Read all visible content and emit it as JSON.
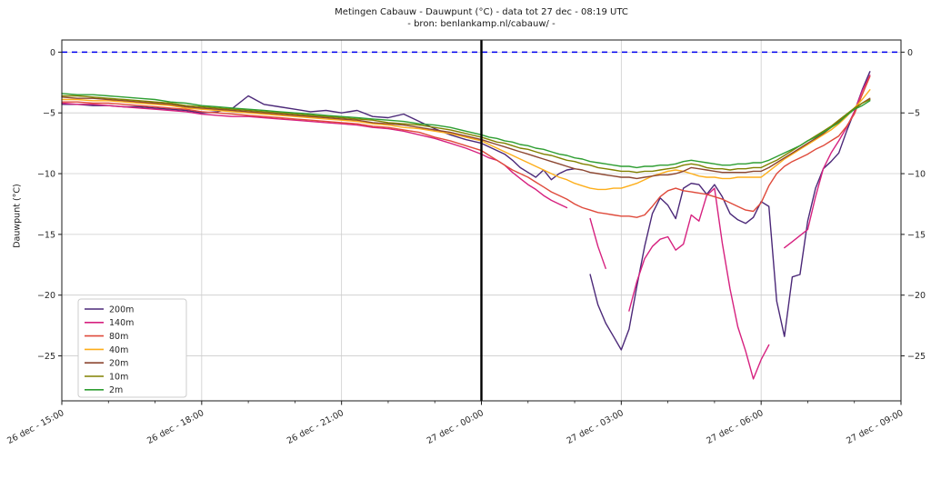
{
  "title": {
    "line1": "Metingen Cabauw - Dauwpunt (°C) - data tot 27 dec - 08:19 UTC",
    "line2": "- bron: benlankamp.nl/cabauw/ -"
  },
  "axes": {
    "ylabel": "Dauwpunt (°C)",
    "y_ticks": [
      0,
      -5,
      -10,
      -15,
      -20,
      -25
    ],
    "y_range": [
      -28.7,
      1.0
    ],
    "x_range_minutes": [
      0,
      1080
    ],
    "x_tick_minutes": [
      0,
      180,
      360,
      540,
      720,
      900,
      1080
    ],
    "x_tick_labels": [
      "26 dec - 15:00",
      "26 dec - 18:00",
      "26 dec - 21:00",
      "27 dec - 00:00",
      "27 dec - 03:00",
      "27 dec - 06:00",
      "27 dec - 09:00"
    ],
    "x_minor_step_minutes": 60,
    "grid": true,
    "grid_color": "#cccccc",
    "spine_color": "#1a1a1a"
  },
  "annotations": {
    "zero_line": {
      "y": 0,
      "color": "#0000ee",
      "style": "dashed"
    },
    "midnight_line": {
      "x_minutes": 540,
      "color": "#000000"
    }
  },
  "chart_data": {
    "type": "line",
    "title": "Metingen Cabauw - Dauwpunt (°C) - data tot 27 dec - 08:19 UTC",
    "xlabel": "",
    "ylabel": "Dauwpunt (°C)",
    "legend_position": "lower left",
    "x_minutes_after_26dec_1500": [
      0,
      20,
      40,
      60,
      80,
      100,
      120,
      140,
      160,
      180,
      200,
      220,
      240,
      260,
      280,
      300,
      320,
      340,
      360,
      380,
      400,
      420,
      440,
      460,
      480,
      500,
      520,
      540,
      550,
      560,
      570,
      580,
      590,
      600,
      610,
      620,
      630,
      640,
      650,
      660,
      670,
      680,
      690,
      700,
      710,
      720,
      730,
      740,
      750,
      760,
      770,
      780,
      790,
      800,
      810,
      820,
      830,
      840,
      850,
      860,
      870,
      880,
      890,
      900,
      910,
      920,
      930,
      940,
      950,
      960,
      970,
      980,
      990,
      1000,
      1010,
      1020,
      1030,
      1040
    ],
    "series": [
      {
        "name": "200m",
        "color": "#4b2878",
        "values": [
          -4.3,
          -4.3,
          -4.4,
          -4.4,
          -4.5,
          -4.5,
          -4.6,
          -4.7,
          -4.8,
          -5.0,
          -4.9,
          -4.6,
          -3.6,
          -4.3,
          -4.5,
          -4.7,
          -4.9,
          -4.8,
          -5.0,
          -4.8,
          -5.3,
          -5.4,
          -5.1,
          -5.7,
          -6.3,
          -6.8,
          -7.2,
          -7.5,
          -7.8,
          -8.1,
          -8.4,
          -8.9,
          -9.5,
          -9.9,
          -10.3,
          -9.7,
          -10.5,
          -10.0,
          -9.7,
          -9.6,
          null,
          -18.3,
          -20.8,
          -22.3,
          -23.4,
          -24.5,
          -22.8,
          -19.3,
          -16.0,
          -13.3,
          -12.0,
          -12.6,
          -13.7,
          -11.2,
          -10.8,
          -10.9,
          -11.7,
          -10.9,
          -11.9,
          -13.3,
          -13.8,
          -14.1,
          -13.6,
          -12.3,
          -12.7,
          -20.5,
          -23.4,
          -18.5,
          -18.3,
          -13.9,
          -11.2,
          -9.6,
          -9.0,
          -8.3,
          -6.5,
          -4.9,
          -3.1,
          -1.6
        ]
      },
      {
        "name": "140m",
        "color": "#d6217f",
        "values": [
          -4.2,
          -4.3,
          -4.3,
          -4.4,
          -4.5,
          -4.6,
          -4.7,
          -4.8,
          -4.9,
          -5.1,
          -5.2,
          -5.3,
          -5.3,
          -5.4,
          -5.5,
          -5.6,
          -5.7,
          -5.8,
          -5.9,
          -6.0,
          -6.2,
          -6.3,
          -6.5,
          -6.8,
          -7.1,
          -7.5,
          -7.9,
          -8.4,
          -8.7,
          -8.9,
          -9.3,
          -9.9,
          -10.4,
          -10.9,
          -11.3,
          -11.8,
          -12.2,
          -12.5,
          -12.8,
          null,
          null,
          -13.7,
          -16.0,
          -17.8,
          null,
          null,
          -21.3,
          -18.9,
          -17.0,
          -16.0,
          -15.4,
          -15.2,
          -16.3,
          -15.8,
          -13.4,
          -13.9,
          -11.8,
          -11.2,
          -15.7,
          -19.5,
          -22.6,
          -24.6,
          -26.9,
          -25.3,
          -24.1,
          null,
          -16.1,
          -15.6,
          -15.1,
          -14.6,
          -11.9,
          -9.6,
          -8.3,
          -7.3,
          -6.2,
          -4.9,
          -3.2,
          -1.9
        ]
      },
      {
        "name": "80m",
        "color": "#df4a3b",
        "values": [
          -4.1,
          -4.1,
          -4.2,
          -4.2,
          -4.3,
          -4.4,
          -4.5,
          -4.6,
          -4.7,
          -4.9,
          -5.0,
          -5.1,
          -5.2,
          -5.3,
          -5.4,
          -5.5,
          -5.6,
          -5.7,
          -5.8,
          -5.9,
          -6.1,
          -6.2,
          -6.4,
          -6.6,
          -7.0,
          -7.3,
          -7.7,
          -8.1,
          -8.5,
          -8.9,
          -9.3,
          -9.7,
          -10.0,
          -10.3,
          -10.7,
          -11.1,
          -11.5,
          -11.8,
          -12.1,
          -12.5,
          -12.8,
          -13.0,
          -13.2,
          -13.3,
          -13.4,
          -13.5,
          -13.5,
          -13.6,
          -13.4,
          -12.7,
          -11.9,
          -11.4,
          -11.2,
          -11.4,
          -11.5,
          -11.6,
          -11.7,
          -11.9,
          -12.1,
          -12.4,
          -12.7,
          -13.0,
          -13.1,
          -12.4,
          -11.0,
          -10.0,
          -9.4,
          -9.0,
          -8.7,
          -8.4,
          -8.0,
          -7.7,
          -7.3,
          -6.9,
          -6.1,
          -5.1,
          -3.5,
          -2.0
        ]
      },
      {
        "name": "40m",
        "color": "#fdae1a",
        "values": [
          -3.9,
          -3.9,
          -4.0,
          -4.0,
          -4.1,
          -4.2,
          -4.3,
          -4.4,
          -4.6,
          -4.7,
          -4.8,
          -4.9,
          -5.0,
          -5.1,
          -5.2,
          -5.3,
          -5.4,
          -5.5,
          -5.6,
          -5.7,
          -5.9,
          -6.0,
          -6.2,
          -6.3,
          -6.5,
          -6.7,
          -7.0,
          -7.3,
          -7.6,
          -7.9,
          -8.2,
          -8.5,
          -8.8,
          -9.1,
          -9.4,
          -9.7,
          -10.0,
          -10.3,
          -10.5,
          -10.8,
          -11.0,
          -11.2,
          -11.3,
          -11.3,
          -11.2,
          -11.2,
          -11.0,
          -10.8,
          -10.5,
          -10.2,
          -10.0,
          -9.8,
          -9.7,
          -9.8,
          -10.0,
          -10.2,
          -10.3,
          -10.3,
          -10.4,
          -10.4,
          -10.3,
          -10.3,
          -10.3,
          -10.3,
          -9.8,
          -9.3,
          -8.8,
          -8.4,
          -8.0,
          -7.6,
          -7.2,
          -6.8,
          -6.4,
          -5.9,
          -5.3,
          -4.6,
          -3.9,
          -3.1
        ]
      },
      {
        "name": "20m",
        "color": "#8c4630",
        "values": [
          -3.7,
          -3.8,
          -3.8,
          -3.9,
          -4.0,
          -4.1,
          -4.2,
          -4.3,
          -4.5,
          -4.6,
          -4.7,
          -4.8,
          -4.9,
          -5.0,
          -5.1,
          -5.2,
          -5.3,
          -5.4,
          -5.5,
          -5.6,
          -5.8,
          -5.9,
          -6.0,
          -6.2,
          -6.4,
          -6.6,
          -6.9,
          -7.2,
          -7.4,
          -7.6,
          -7.8,
          -8.0,
          -8.2,
          -8.4,
          -8.6,
          -8.8,
          -9.0,
          -9.2,
          -9.4,
          -9.6,
          -9.7,
          -9.9,
          -10.0,
          -10.1,
          -10.2,
          -10.3,
          -10.3,
          -10.4,
          -10.3,
          -10.2,
          -10.1,
          -10.1,
          -10.0,
          -9.8,
          -9.5,
          -9.6,
          -9.7,
          -9.8,
          -9.9,
          -9.9,
          -9.9,
          -9.9,
          -9.8,
          -9.8,
          -9.5,
          -9.1,
          -8.7,
          -8.3,
          -7.9,
          -7.5,
          -7.1,
          -6.7,
          -6.2,
          -5.7,
          -5.2,
          -4.7,
          -4.2,
          -3.8
        ]
      },
      {
        "name": "10m",
        "color": "#818100",
        "values": [
          -3.6,
          -3.6,
          -3.7,
          -3.8,
          -3.9,
          -4.0,
          -4.1,
          -4.2,
          -4.4,
          -4.5,
          -4.6,
          -4.7,
          -4.8,
          -4.9,
          -5.0,
          -5.1,
          -5.2,
          -5.3,
          -5.4,
          -5.5,
          -5.6,
          -5.8,
          -5.9,
          -6.0,
          -6.2,
          -6.4,
          -6.7,
          -7.0,
          -7.2,
          -7.4,
          -7.5,
          -7.7,
          -7.9,
          -8.0,
          -8.2,
          -8.4,
          -8.5,
          -8.7,
          -8.9,
          -9.0,
          -9.2,
          -9.3,
          -9.5,
          -9.6,
          -9.7,
          -9.8,
          -9.8,
          -9.9,
          -9.8,
          -9.8,
          -9.7,
          -9.6,
          -9.5,
          -9.3,
          -9.2,
          -9.3,
          -9.5,
          -9.6,
          -9.6,
          -9.7,
          -9.6,
          -9.6,
          -9.5,
          -9.5,
          -9.2,
          -8.9,
          -8.5,
          -8.1,
          -7.7,
          -7.3,
          -6.9,
          -6.5,
          -6.1,
          -5.6,
          -5.1,
          -4.6,
          -4.2,
          -3.9
        ]
      },
      {
        "name": "2m",
        "color": "#2e9e32",
        "values": [
          -3.4,
          -3.5,
          -3.5,
          -3.6,
          -3.7,
          -3.8,
          -3.9,
          -4.1,
          -4.2,
          -4.4,
          -4.5,
          -4.6,
          -4.7,
          -4.8,
          -4.9,
          -5.0,
          -5.1,
          -5.2,
          -5.3,
          -5.4,
          -5.5,
          -5.6,
          -5.7,
          -5.9,
          -6.0,
          -6.2,
          -6.5,
          -6.8,
          -7.0,
          -7.1,
          -7.3,
          -7.4,
          -7.6,
          -7.7,
          -7.9,
          -8.0,
          -8.2,
          -8.4,
          -8.5,
          -8.7,
          -8.8,
          -9.0,
          -9.1,
          -9.2,
          -9.3,
          -9.4,
          -9.4,
          -9.5,
          -9.4,
          -9.4,
          -9.3,
          -9.3,
          -9.2,
          -9.0,
          -8.9,
          -9.0,
          -9.1,
          -9.2,
          -9.3,
          -9.3,
          -9.2,
          -9.2,
          -9.1,
          -9.1,
          -8.9,
          -8.6,
          -8.3,
          -8.0,
          -7.7,
          -7.3,
          -7.0,
          -6.6,
          -6.2,
          -5.8,
          -5.2,
          -4.7,
          -4.4,
          -4.0
        ]
      }
    ]
  }
}
